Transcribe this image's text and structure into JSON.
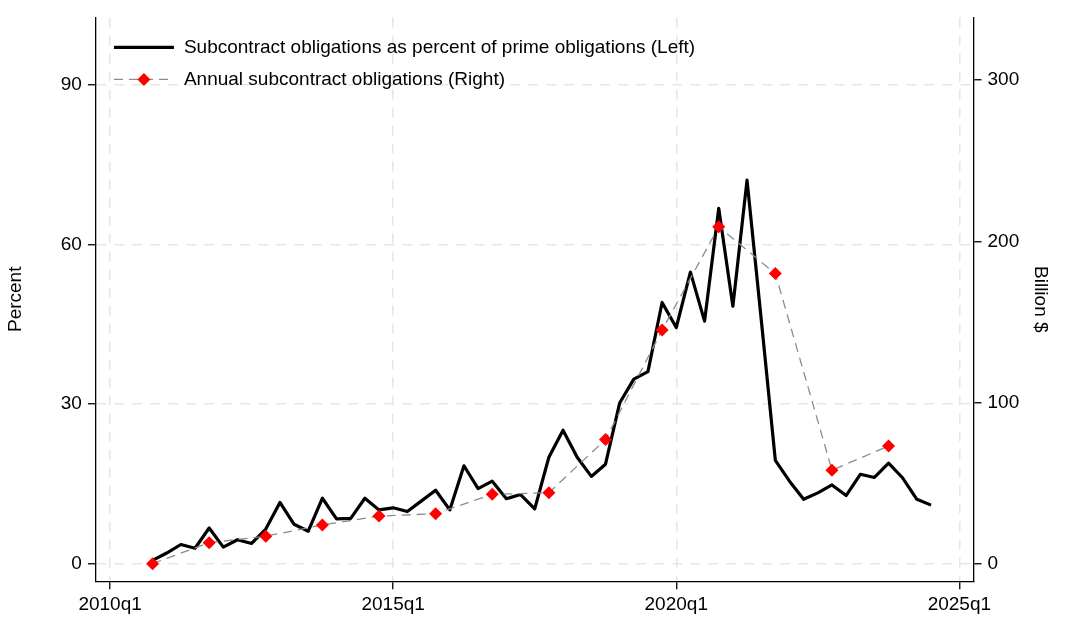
{
  "chart_data": {
    "type": "line",
    "ylabel": "Percent",
    "y2label": "Billion $",
    "categories": [
      null,
      "2010q1",
      null,
      null,
      null,
      null,
      null,
      null,
      null,
      null,
      null,
      null,
      null,
      null,
      null,
      null,
      null,
      null,
      null,
      null,
      null,
      "2015q1",
      null,
      null,
      null,
      null,
      null,
      null,
      null,
      null,
      null,
      null,
      null,
      null,
      null,
      null,
      null,
      null,
      null,
      null,
      null,
      "2020q1",
      null,
      null,
      null,
      null,
      null,
      null,
      null,
      null,
      null,
      null,
      null,
      null,
      null,
      null,
      null,
      null,
      null,
      null,
      null,
      "2025q1",
      null
    ],
    "ylim": [
      -3.3,
      102.7
    ],
    "yticks": [
      0,
      30,
      60,
      90
    ],
    "y2lim": [
      -10.9,
      339
    ],
    "y2ticks": [
      0,
      100,
      200,
      300
    ],
    "grid": true,
    "legend": "top left",
    "series": [
      {
        "name": "Subcontract obligations as percent of prime obligations (Left)",
        "color": "#000000",
        "marker": "none",
        "line_style": "solid",
        "values": [
          null,
          null,
          null,
          null,
          0.6,
          2.0,
          3.6,
          2.9,
          6.7,
          3.1,
          4.5,
          3.8,
          6.5,
          11.5,
          7.4,
          6.1,
          12.3,
          8.4,
          8.5,
          12.3,
          10.1,
          10.5,
          9.8,
          11.8,
          13.8,
          10.1,
          18.4,
          14.1,
          15.5,
          12.2,
          13.0,
          10.3,
          20.0,
          25.1,
          20.0,
          16.4,
          18.7,
          30.2,
          34.7,
          36.1,
          49.1,
          44.4,
          54.8,
          45.6,
          66.8,
          48.4,
          72.1,
          46,
          19.4,
          15.5,
          12.1,
          13.3,
          14.8,
          12.8,
          16.8,
          16.2,
          18.9,
          16.1,
          12.1,
          11.0,
          null,
          null,
          null
        ]
      },
      {
        "name": "Annual subcontract obligations (Right)",
        "color": "#ff0000",
        "axis": "y2",
        "marker": "diamond",
        "line_style": "dashed",
        "values": [
          null,
          null,
          null,
          null,
          0,
          null,
          null,
          null,
          13,
          null,
          null,
          null,
          17,
          null,
          null,
          null,
          24,
          null,
          null,
          null,
          29.5,
          null,
          null,
          null,
          31,
          null,
          null,
          null,
          43,
          null,
          null,
          null,
          44,
          null,
          null,
          null,
          77,
          null,
          null,
          null,
          145,
          null,
          null,
          null,
          209,
          null,
          null,
          null,
          180,
          null,
          null,
          null,
          58,
          null,
          null,
          null,
          73,
          null,
          null,
          null,
          null,
          null,
          null
        ]
      }
    ]
  }
}
